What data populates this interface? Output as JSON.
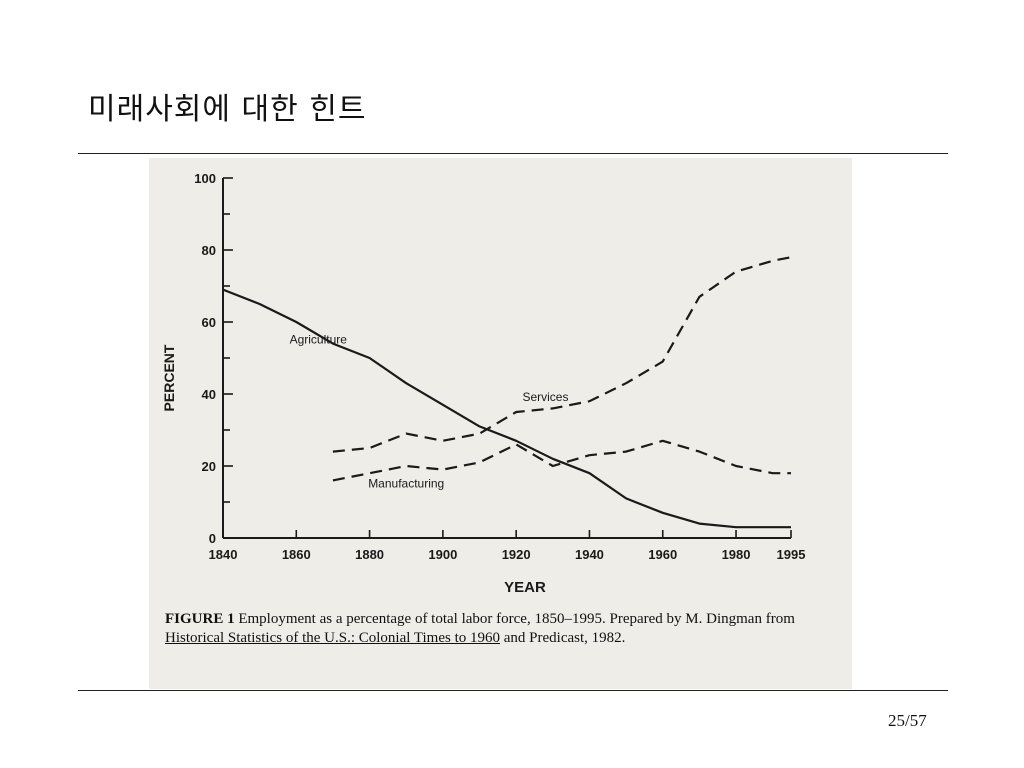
{
  "slide": {
    "title": "미래사회에 대한 힌트",
    "page_number": "25/57"
  },
  "caption": {
    "figure_label": "FIGURE 1",
    "text1": "Employment as a percentage of total labor force, 1850–1995.",
    "text2": "Prepared by M. Dingman from",
    "source_title": "Historical Statistics of the U.S.: Colonial Times to 1960",
    "text3": "and Predicast, 1982."
  },
  "chart_data": {
    "type": "line",
    "title": "",
    "xlabel": "YEAR",
    "ylabel": "PERCENT",
    "xlim": [
      1840,
      1995
    ],
    "ylim": [
      0,
      100
    ],
    "x_ticks": [
      1840,
      1860,
      1880,
      1900,
      1920,
      1940,
      1960,
      1980,
      1995
    ],
    "y_ticks": [
      0,
      20,
      40,
      60,
      80,
      100
    ],
    "series": [
      {
        "name": "Agriculture",
        "style": "solid",
        "x": [
          1840,
          1850,
          1860,
          1870,
          1880,
          1890,
          1900,
          1910,
          1920,
          1930,
          1940,
          1950,
          1960,
          1970,
          1980,
          1990,
          1995
        ],
        "y": [
          69,
          65,
          60,
          54,
          50,
          43,
          37,
          31,
          27,
          22,
          18,
          11,
          7,
          4,
          3,
          3,
          3
        ]
      },
      {
        "name": "Services",
        "style": "dashed",
        "x": [
          1870,
          1880,
          1890,
          1900,
          1910,
          1920,
          1930,
          1940,
          1950,
          1960,
          1970,
          1980,
          1990,
          1995
        ],
        "y": [
          24,
          25,
          29,
          27,
          29,
          35,
          36,
          38,
          43,
          49,
          67,
          74,
          77,
          78
        ]
      },
      {
        "name": "Manufacturing",
        "style": "dashed",
        "x": [
          1870,
          1880,
          1890,
          1900,
          1910,
          1920,
          1930,
          1940,
          1950,
          1960,
          1970,
          1980,
          1990,
          1995
        ],
        "y": [
          16,
          18,
          20,
          19,
          21,
          26,
          20,
          23,
          24,
          27,
          24,
          20,
          18,
          18
        ]
      }
    ],
    "legend": "inline labels"
  }
}
